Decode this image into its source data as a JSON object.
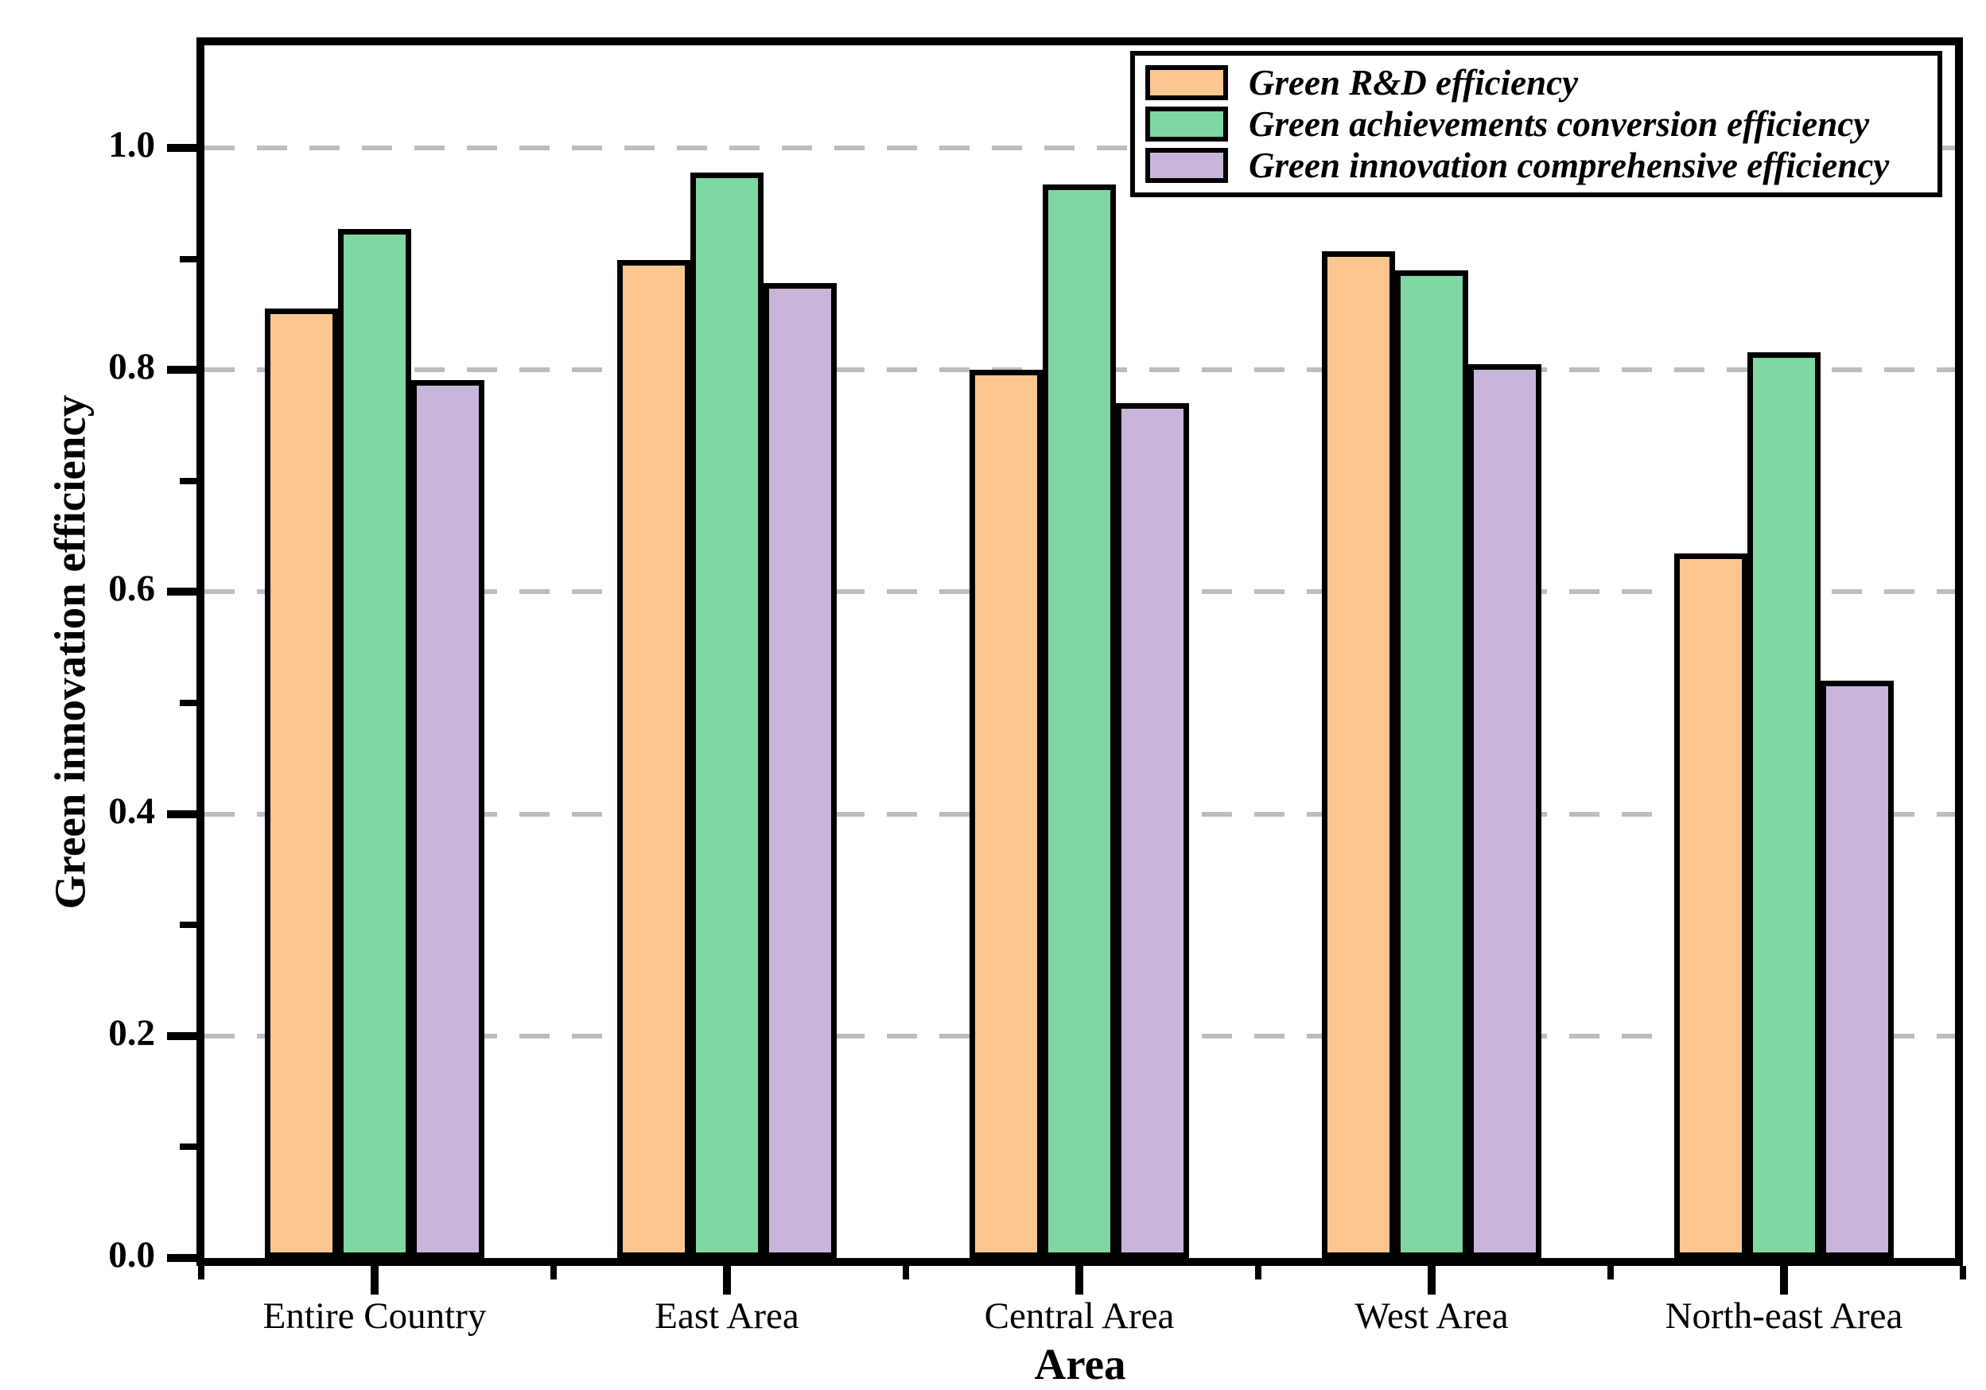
{
  "chart_data": {
    "type": "bar",
    "title": "",
    "xlabel": "Area",
    "ylabel": "Green innovation efficiency",
    "categories": [
      "Entire Country",
      "East Area",
      "Central Area",
      "West Area",
      "North-east Area"
    ],
    "series": [
      {
        "name": "Green R&D efficiency",
        "color": "#FCC690",
        "values": [
          0.855,
          0.899,
          0.8,
          0.907,
          0.635
        ]
      },
      {
        "name": "Green achievements conversion efficiency",
        "color": "#7FD7A1",
        "values": [
          0.927,
          0.978,
          0.967,
          0.89,
          0.816
        ]
      },
      {
        "name": "Green innovation comprehensive efficiency",
        "color": "#C9B5D9",
        "values": [
          0.791,
          0.878,
          0.77,
          0.805,
          0.52
        ]
      }
    ],
    "ylim": [
      0.0,
      1.09
    ],
    "yticks_major": [
      0.0,
      0.2,
      0.4,
      0.6,
      0.8,
      1.0
    ],
    "yticks_minor": [
      0.1,
      0.3,
      0.5,
      0.7,
      0.9
    ],
    "ytick_labels": [
      "0.0",
      "0.2",
      "0.4",
      "0.6",
      "0.8",
      "1.0"
    ],
    "grid": "dashed horizontal at major ticks",
    "gridline_color": "#bdbdbd",
    "bar_border_color": "#000000",
    "legend_position": "top-right"
  }
}
